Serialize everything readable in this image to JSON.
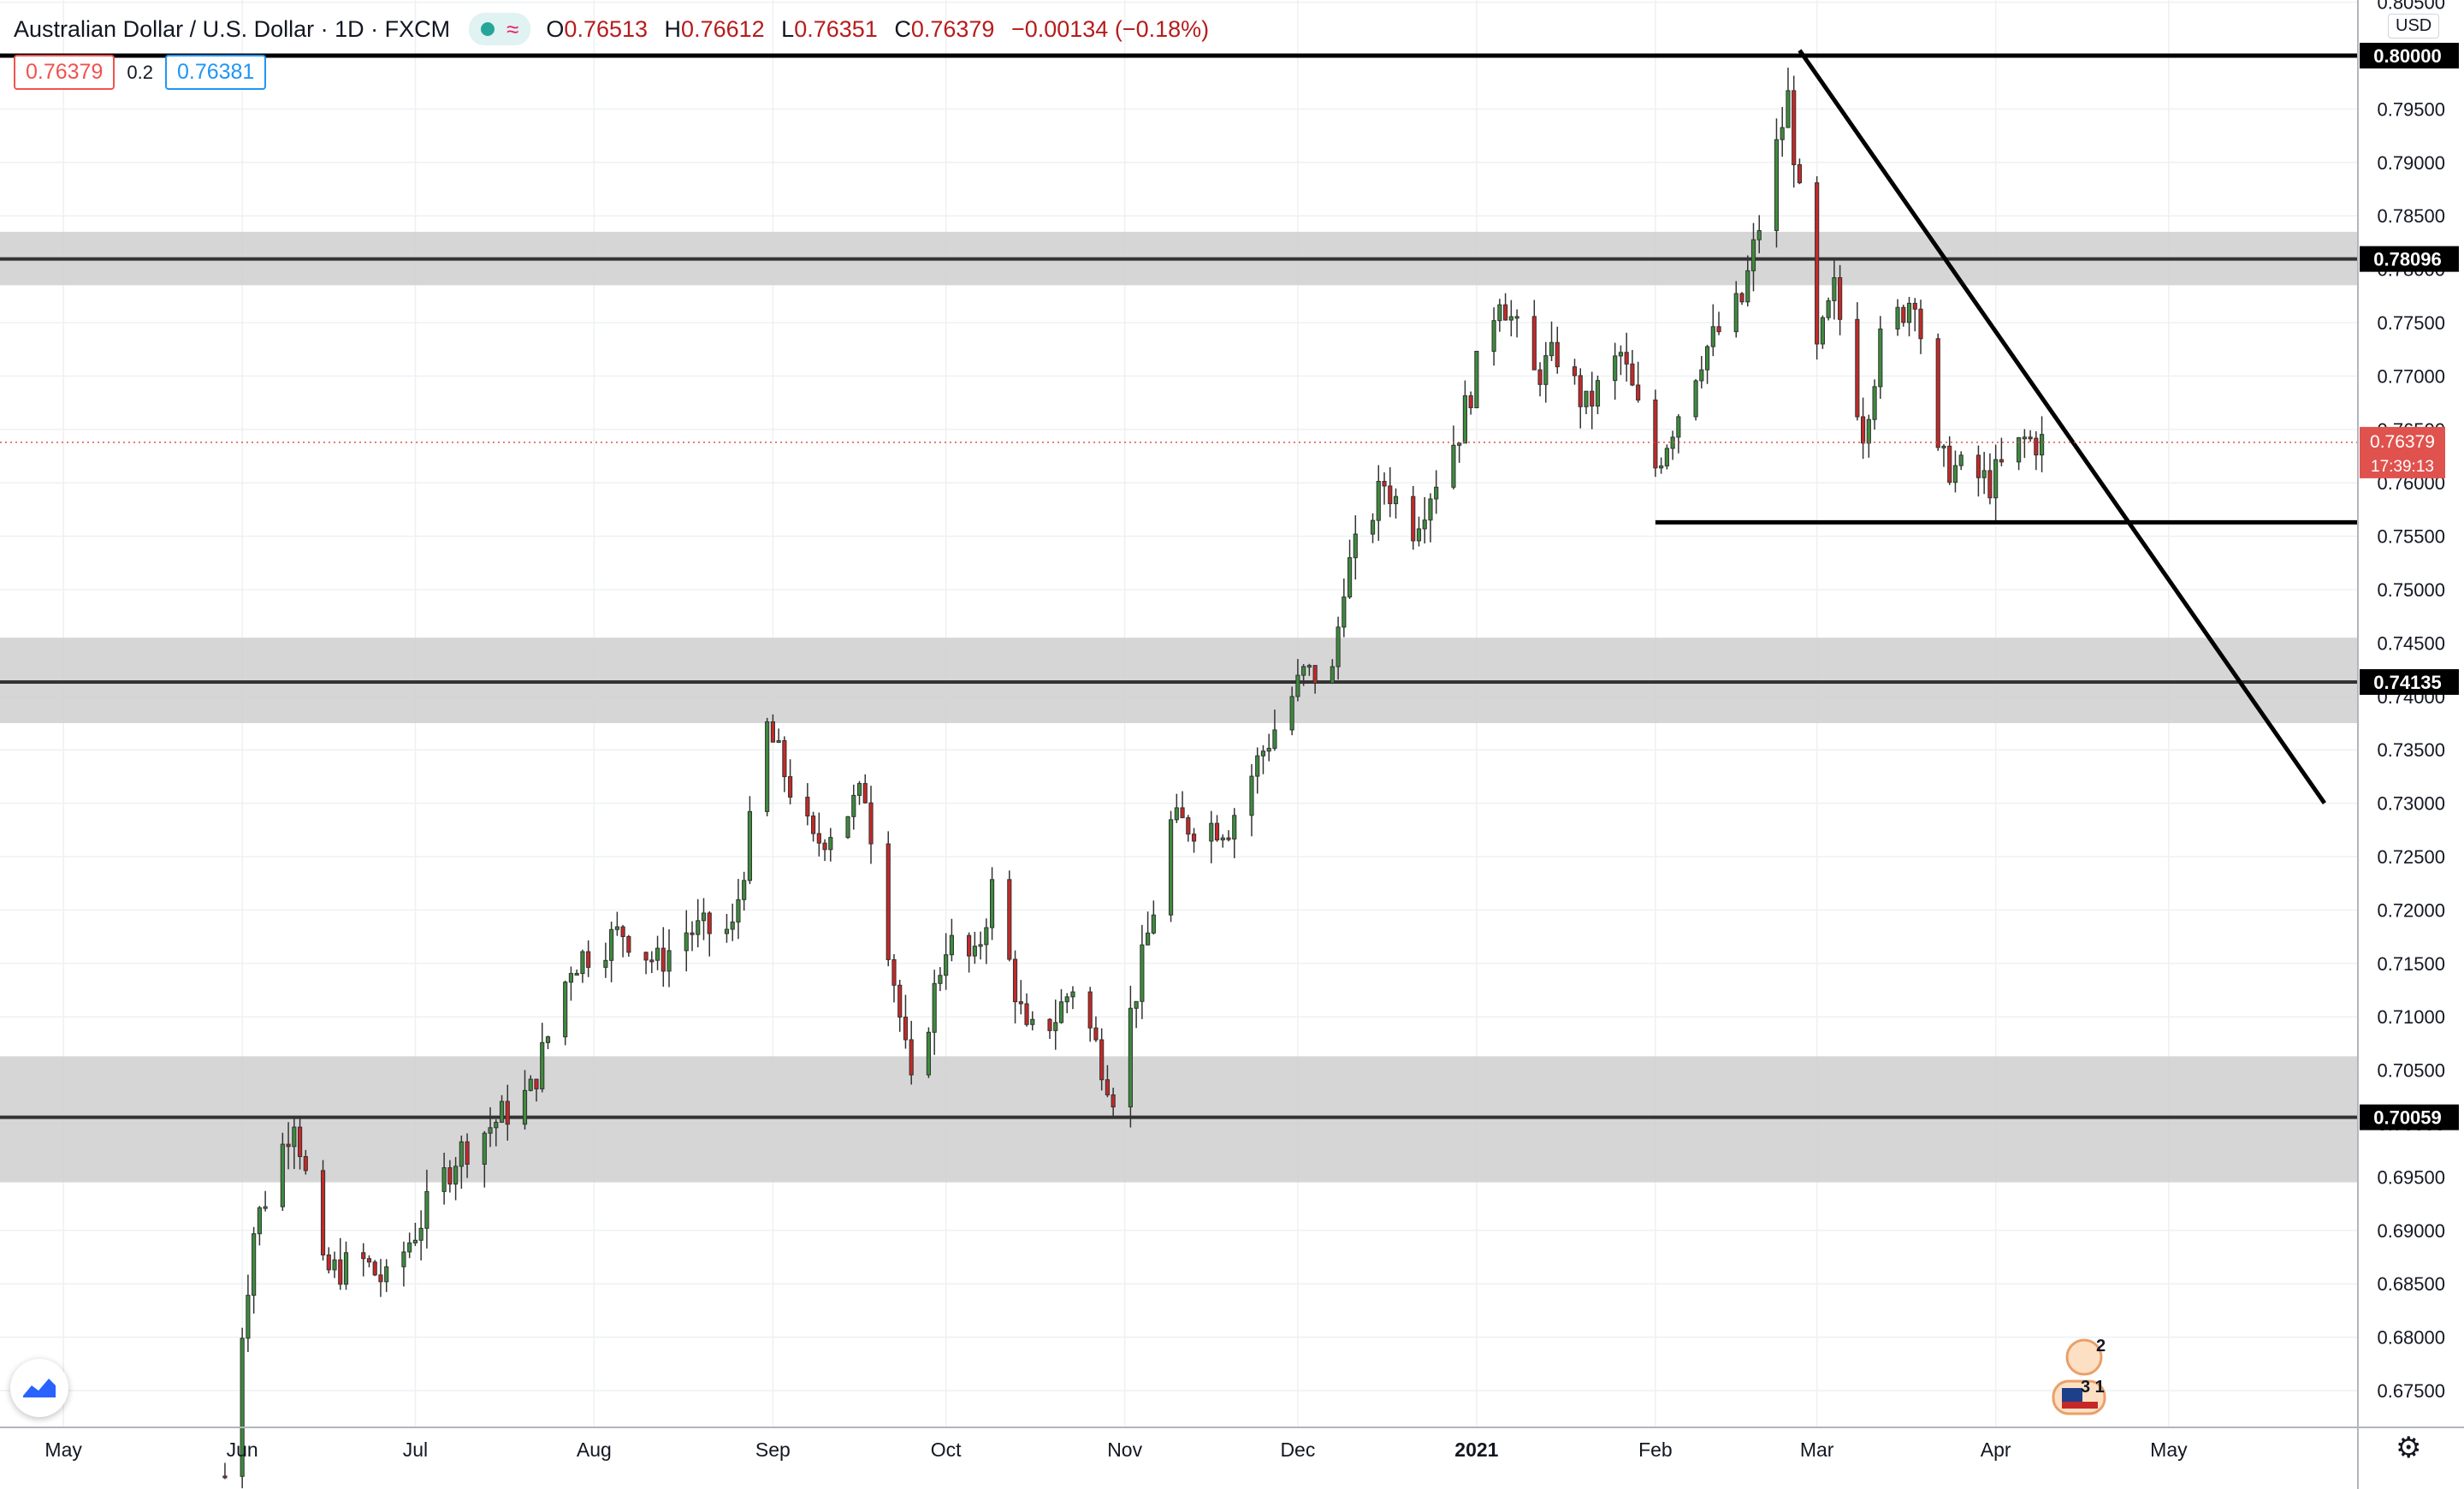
{
  "legend": {
    "symbol": "Australian Dollar / U.S. Dollar · 1D · FXCM",
    "open_label": "O",
    "open": "0.76513",
    "high_label": "H",
    "high": "0.76612",
    "low_label": "L",
    "low": "0.76351",
    "close_label": "C",
    "close": "0.76379",
    "change": "−0.00134 (−0.18%)"
  },
  "trade": {
    "sell_price": "0.76379",
    "spread": "0.2",
    "buy_price": "0.76381"
  },
  "currency": "USD",
  "events": {
    "au_count": "2",
    "us_count": "3 1"
  },
  "colors": {
    "up": "#3d8b3d",
    "down": "#c62828",
    "zone": "#cfcfcf",
    "line": "#111111",
    "price": "#e0524d"
  },
  "chart_data": {
    "type": "candlestick",
    "instrument": "AUD/USD",
    "timeframe": "1D",
    "x_axis_labels": [
      "May",
      "Jun",
      "Jul",
      "Aug",
      "Sep",
      "Oct",
      "Nov",
      "Dec",
      "2021",
      "Feb",
      "Mar",
      "Apr",
      "May"
    ],
    "y_ticks": [
      "0.80500",
      "0.80000",
      "0.79500",
      "0.79000",
      "0.78500",
      "0.78000",
      "0.77500",
      "0.77000",
      "0.76500",
      "0.76000",
      "0.75500",
      "0.75000",
      "0.74500",
      "0.74000",
      "0.73500",
      "0.73000",
      "0.72500",
      "0.72000",
      "0.71500",
      "0.71000",
      "0.70500",
      "0.70000",
      "0.69500",
      "0.69000",
      "0.68500",
      "0.68000",
      "0.67500"
    ],
    "ylim": [
      0.6705,
      0.8055
    ],
    "grid": true,
    "current_price": "0.76379",
    "countdown": "17:39:13",
    "price_labels": [
      {
        "label": "0.80000",
        "value": 0.8
      },
      {
        "label": "0.78096",
        "value": 0.78096
      },
      {
        "label": "0.74135",
        "value": 0.74135
      },
      {
        "label": "0.70059",
        "value": 0.70059
      }
    ],
    "zones": [
      {
        "from": 0.7785,
        "to": 0.7835
      },
      {
        "from": 0.7375,
        "to": 0.7455
      },
      {
        "from": 0.6945,
        "to": 0.7063
      }
    ],
    "trendline": {
      "from": [
        "2021-02-26",
        0.8005
      ],
      "to": [
        "2021-05-28",
        0.73
      ]
    },
    "support_line": {
      "from": "2021-02-01",
      "value": 0.7563
    },
    "ohlc_keyframes": [
      [
        "2020-05-29",
        0.667
      ],
      [
        "2020-06-03",
        0.69
      ],
      [
        "2020-06-10",
        0.701
      ],
      [
        "2020-06-15",
        0.686
      ],
      [
        "2020-06-22",
        0.687
      ],
      [
        "2020-06-26",
        0.685
      ],
      [
        "2020-07-08",
        0.697
      ],
      [
        "2020-07-21",
        0.703
      ],
      [
        "2020-07-28",
        0.715
      ],
      [
        "2020-08-06",
        0.718
      ],
      [
        "2020-08-12",
        0.715
      ],
      [
        "2020-08-17",
        0.718
      ],
      [
        "2020-08-25",
        0.718
      ],
      [
        "2020-08-31",
        0.737
      ],
      [
        "2020-09-08",
        0.726
      ],
      [
        "2020-09-17",
        0.731
      ],
      [
        "2020-09-25",
        0.703
      ],
      [
        "2020-10-01",
        0.717
      ],
      [
        "2020-10-06",
        0.715
      ],
      [
        "2020-10-09",
        0.722
      ],
      [
        "2020-10-15",
        0.708
      ],
      [
        "2020-10-20",
        0.71
      ],
      [
        "2020-10-23",
        0.713
      ],
      [
        "2020-10-30",
        0.703
      ],
      [
        "2020-11-04",
        0.715
      ],
      [
        "2020-11-09",
        0.728
      ],
      [
        "2020-11-19",
        0.728
      ],
      [
        "2020-11-25",
        0.735
      ],
      [
        "2020-12-02",
        0.742
      ],
      [
        "2020-12-07",
        0.742
      ],
      [
        "2020-12-09",
        0.751
      ],
      [
        "2020-12-16",
        0.76
      ],
      [
        "2020-12-21",
        0.756
      ],
      [
        "2020-12-29",
        0.765
      ],
      [
        "2021-01-05",
        0.778
      ],
      [
        "2021-01-11",
        0.77
      ],
      [
        "2021-01-15",
        0.772
      ],
      [
        "2021-01-20",
        0.767
      ],
      [
        "2021-01-26",
        0.772
      ],
      [
        "2021-02-01",
        0.7615
      ],
      [
        "2021-02-09",
        0.772
      ],
      [
        "2021-02-16",
        0.777
      ],
      [
        "2021-02-24",
        0.796
      ],
      [
        "2021-03-01",
        0.772
      ],
      [
        "2021-03-04",
        0.778
      ],
      [
        "2021-03-09",
        0.765
      ],
      [
        "2021-03-12",
        0.773
      ],
      [
        "2021-03-18",
        0.778
      ],
      [
        "2021-03-22",
        0.762
      ],
      [
        "2021-03-31",
        0.76
      ],
      [
        "2021-04-06",
        0.764
      ],
      [
        "2021-04-09",
        0.7638
      ]
    ]
  }
}
